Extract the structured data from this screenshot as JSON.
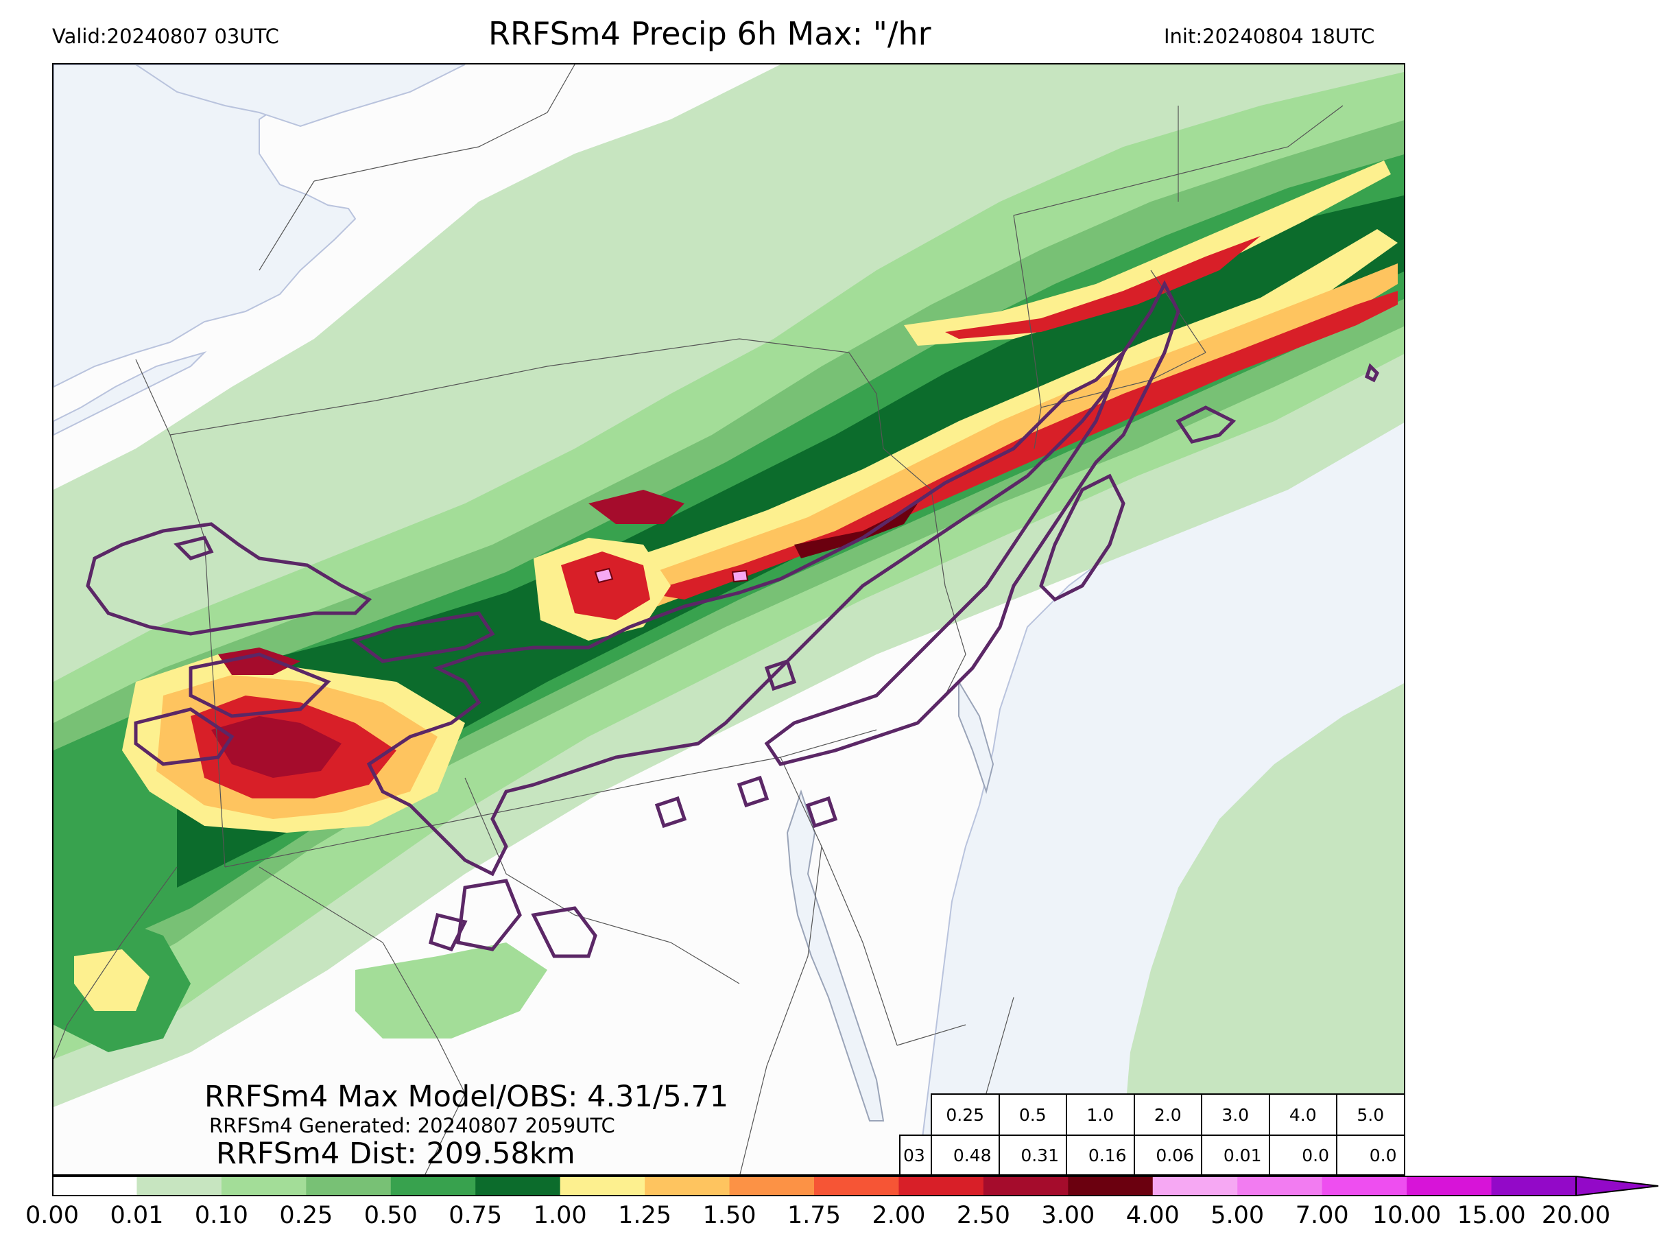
{
  "header": {
    "valid": "Valid:20240807 03UTC",
    "title": "RRFSm4 Precip 6h Max: \"/hr",
    "init": "Init:20240804 18UTC"
  },
  "annotations": {
    "max_model_obs": "RRFSm4 Max Model/OBS: 4.31/5.71",
    "generated": "RRFSm4 Generated: 20240807 2059UTC",
    "distance": "RRFSm4 Dist: 209.58km"
  },
  "stats_table": {
    "thresholds": [
      "0.25",
      "0.5",
      "1.0",
      "2.0",
      "3.0",
      "4.0",
      "5.0"
    ],
    "row_label": "03",
    "values": [
      "0.48",
      "0.31",
      "0.16",
      "0.06",
      "0.01",
      "0.0",
      "0.0"
    ]
  },
  "colorbar": {
    "levels": [
      "0.00",
      "0.01",
      "0.10",
      "0.25",
      "0.50",
      "0.75",
      "1.00",
      "1.25",
      "1.50",
      "1.75",
      "2.00",
      "2.50",
      "3.00",
      "4.00",
      "5.00",
      "7.00",
      "10.00",
      "15.00",
      "20.00"
    ],
    "colors": [
      "#ffffff",
      "#c7e5c0",
      "#a3dd98",
      "#78c175",
      "#38a24e",
      "#0c6c2c",
      "#fdf08f",
      "#fec45f",
      "#fc9245",
      "#f65535",
      "#d81f28",
      "#a50c2c",
      "#6b000f",
      "#f6a8f3",
      "#f27cf1",
      "#ee4ef0",
      "#d714d8",
      "#9309c8"
    ],
    "extend": "max"
  },
  "map": {
    "ocean_color": "#eef3f9",
    "land_color": "#fcfcfc",
    "obs_contour_color": "#5b2766",
    "precip_colors": {
      "light": "#c7e5c0",
      "light2": "#a3dd98",
      "mid": "#78c175",
      "mid2": "#38a24e",
      "dark": "#0c6c2c",
      "yellow": "#fdf08f",
      "orange": "#fec45f",
      "orange2": "#fc9245",
      "red": "#d81f28",
      "darkred": "#a50c2c",
      "maroon": "#6b000f",
      "pink": "#f6a8f3"
    }
  }
}
